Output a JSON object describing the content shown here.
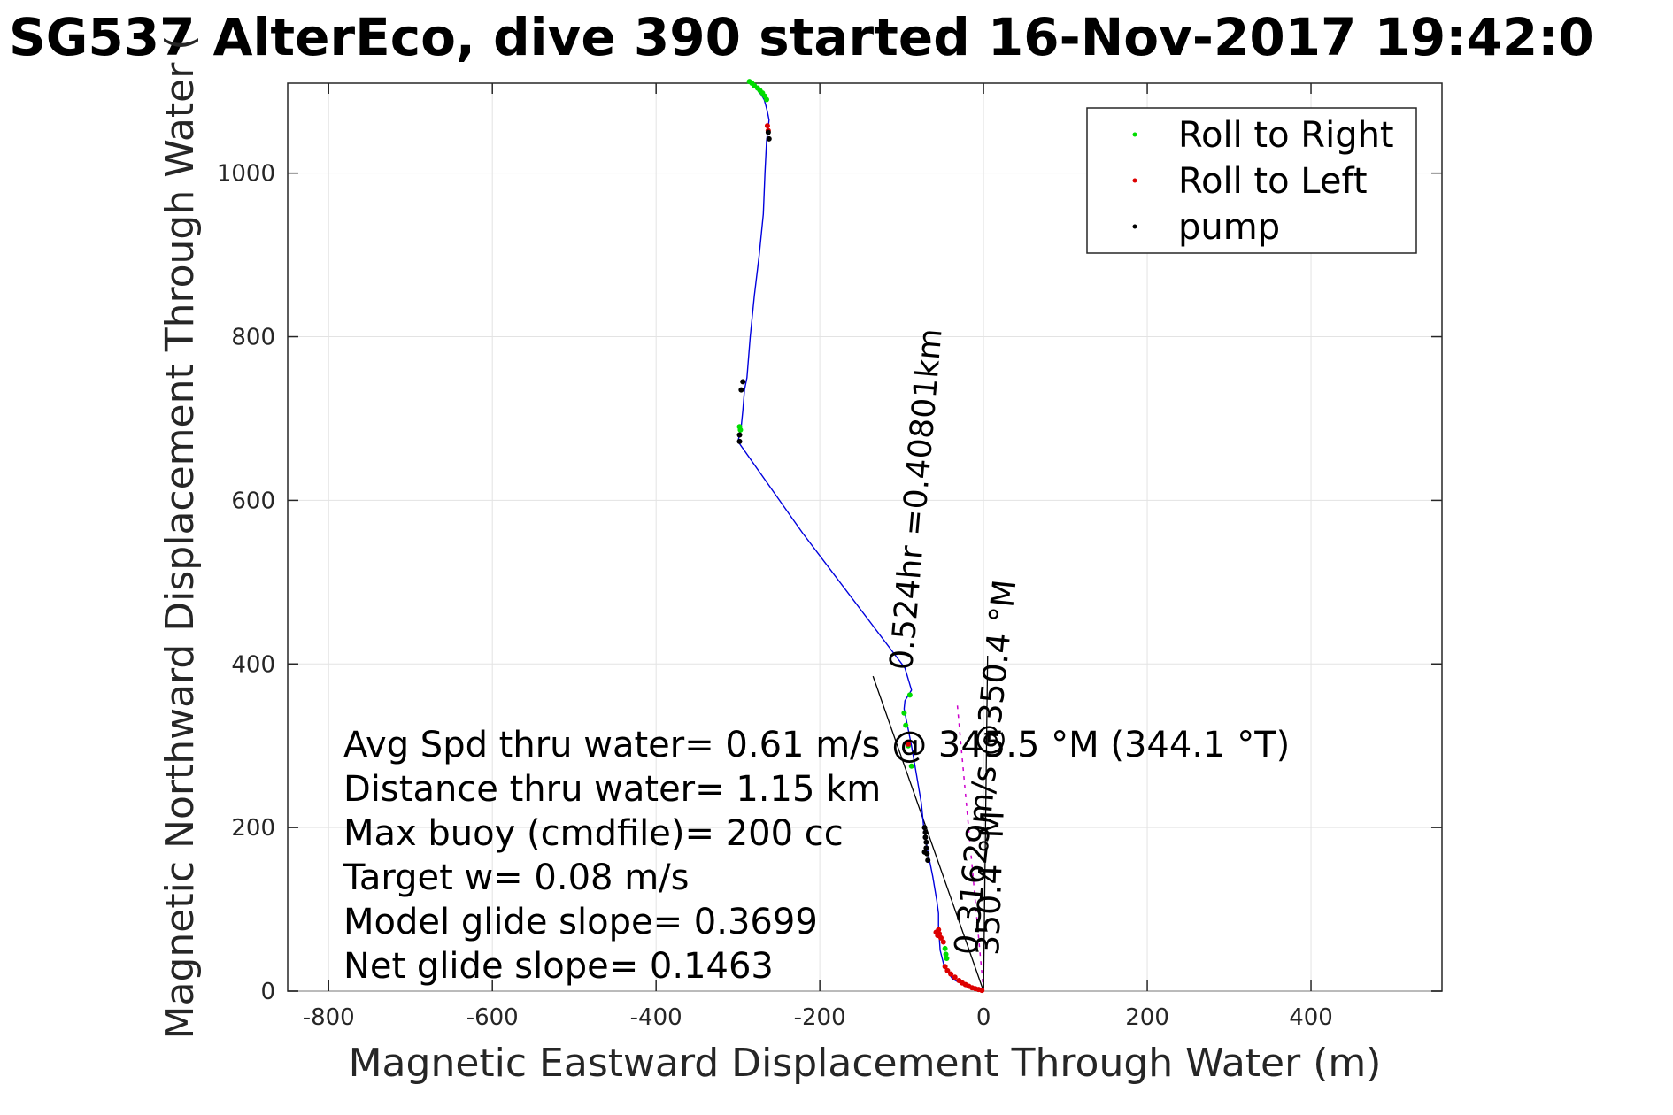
{
  "chart_data": {
    "type": "line",
    "title": "SG537 AlterEco, dive 390 started 16-Nov-2017 19:42:0",
    "xlabel": "Magnetic Eastward Displacement Through Water (m)",
    "ylabel": "Magnetic Northward Displacement Through Water (",
    "xlim": [
      -850,
      560
    ],
    "ylim": [
      0,
      1110
    ],
    "xticks": [
      -800,
      -600,
      -400,
      -200,
      0,
      200,
      400
    ],
    "yticks": [
      0,
      200,
      400,
      600,
      800,
      1000
    ],
    "grid": true,
    "legend_position": "top-right",
    "legend": [
      {
        "label": "Roll to Right",
        "color": "#00dd00"
      },
      {
        "label": "Roll to Left",
        "color": "#dd0000"
      },
      {
        "label": "pump",
        "color": "#000000"
      }
    ],
    "track": {
      "color": "#0000dd",
      "x": [
        0,
        -20,
        -38,
        -48,
        -53,
        -55,
        -55,
        -57,
        -62,
        -68,
        -73,
        -76,
        -82,
        -88,
        -94,
        -97,
        -96,
        -88,
        -96,
        -221,
        -300,
        -298,
        -296,
        -294,
        -292,
        -290,
        -289,
        -285,
        -280,
        -274,
        -269,
        -267,
        -265,
        -263,
        -262,
        -264,
        -266,
        -268,
        -271,
        -275,
        -279,
        -286
      ],
      "y": [
        0,
        5,
        15,
        30,
        50,
        80,
        95,
        110,
        140,
        170,
        200,
        230,
        265,
        300,
        330,
        345,
        355,
        368,
        395,
        560,
        672,
        680,
        690,
        710,
        735,
        745,
        750,
        800,
        850,
        900,
        950,
        1000,
        1040,
        1055,
        1065,
        1075,
        1083,
        1090,
        1095,
        1100,
        1105,
        1112
      ]
    },
    "roll_right": {
      "color": "#00dd00",
      "x": [
        -45,
        -46,
        -47,
        -88,
        -92,
        -95,
        -97,
        -90,
        -265,
        -267,
        -270,
        -273,
        -276,
        -280,
        -283,
        -286,
        -297,
        -298
      ],
      "y": [
        40,
        45,
        52,
        275,
        300,
        325,
        340,
        362,
        1090,
        1094,
        1098,
        1101,
        1104,
        1107,
        1110,
        1112,
        686,
        690
      ]
    },
    "roll_left": {
      "color": "#dd0000",
      "x": [
        -2,
        -6,
        -10,
        -14,
        -18,
        -22,
        -26,
        -30,
        -35,
        -40,
        -44,
        -47,
        -49,
        -52,
        -54,
        -55,
        -56,
        -58,
        -92,
        -263,
        -264
      ],
      "y": [
        1,
        2,
        3,
        4,
        6,
        8,
        10,
        13,
        17,
        21,
        25,
        30,
        60,
        65,
        70,
        75,
        68,
        72,
        302,
        1052,
        1058
      ]
    },
    "pump": {
      "color": "#000000",
      "x": [
        -68,
        -69,
        -70,
        -70,
        -71,
        -71,
        -72,
        -72,
        -298,
        -298,
        -296,
        -294,
        -262,
        -263
      ],
      "y": [
        160,
        168,
        175,
        182,
        188,
        194,
        200,
        170,
        672,
        680,
        735,
        745,
        1042,
        1050
      ]
    },
    "heading_lines": [
      {
        "x": [
          0,
          -135
        ],
        "y": [
          0,
          385
        ],
        "color": "#000000"
      },
      {
        "x": [
          0,
          5
        ],
        "y": [
          0,
          410
        ],
        "color": "#000000"
      }
    ],
    "current_arrow": {
      "x": [
        0,
        -32
      ],
      "y": [
        0,
        350
      ],
      "color": "#cc00cc"
    },
    "stats": [
      "Avg Spd thru water=  0.61 m/s @ 345.5 °M (344.1 °T)",
      "Distance thru water=  1.15 km",
      "Max buoy (cmdfile)= 200 cc",
      "Target w= 0.08 m/s",
      "Model glide slope= 0.3699",
      "Net glide slope= 0.1463"
    ],
    "rotated_labels": [
      "0.524hr =0.40801km",
      "0.31629m/s @350.4 °M",
      "350.4 °M"
    ]
  }
}
